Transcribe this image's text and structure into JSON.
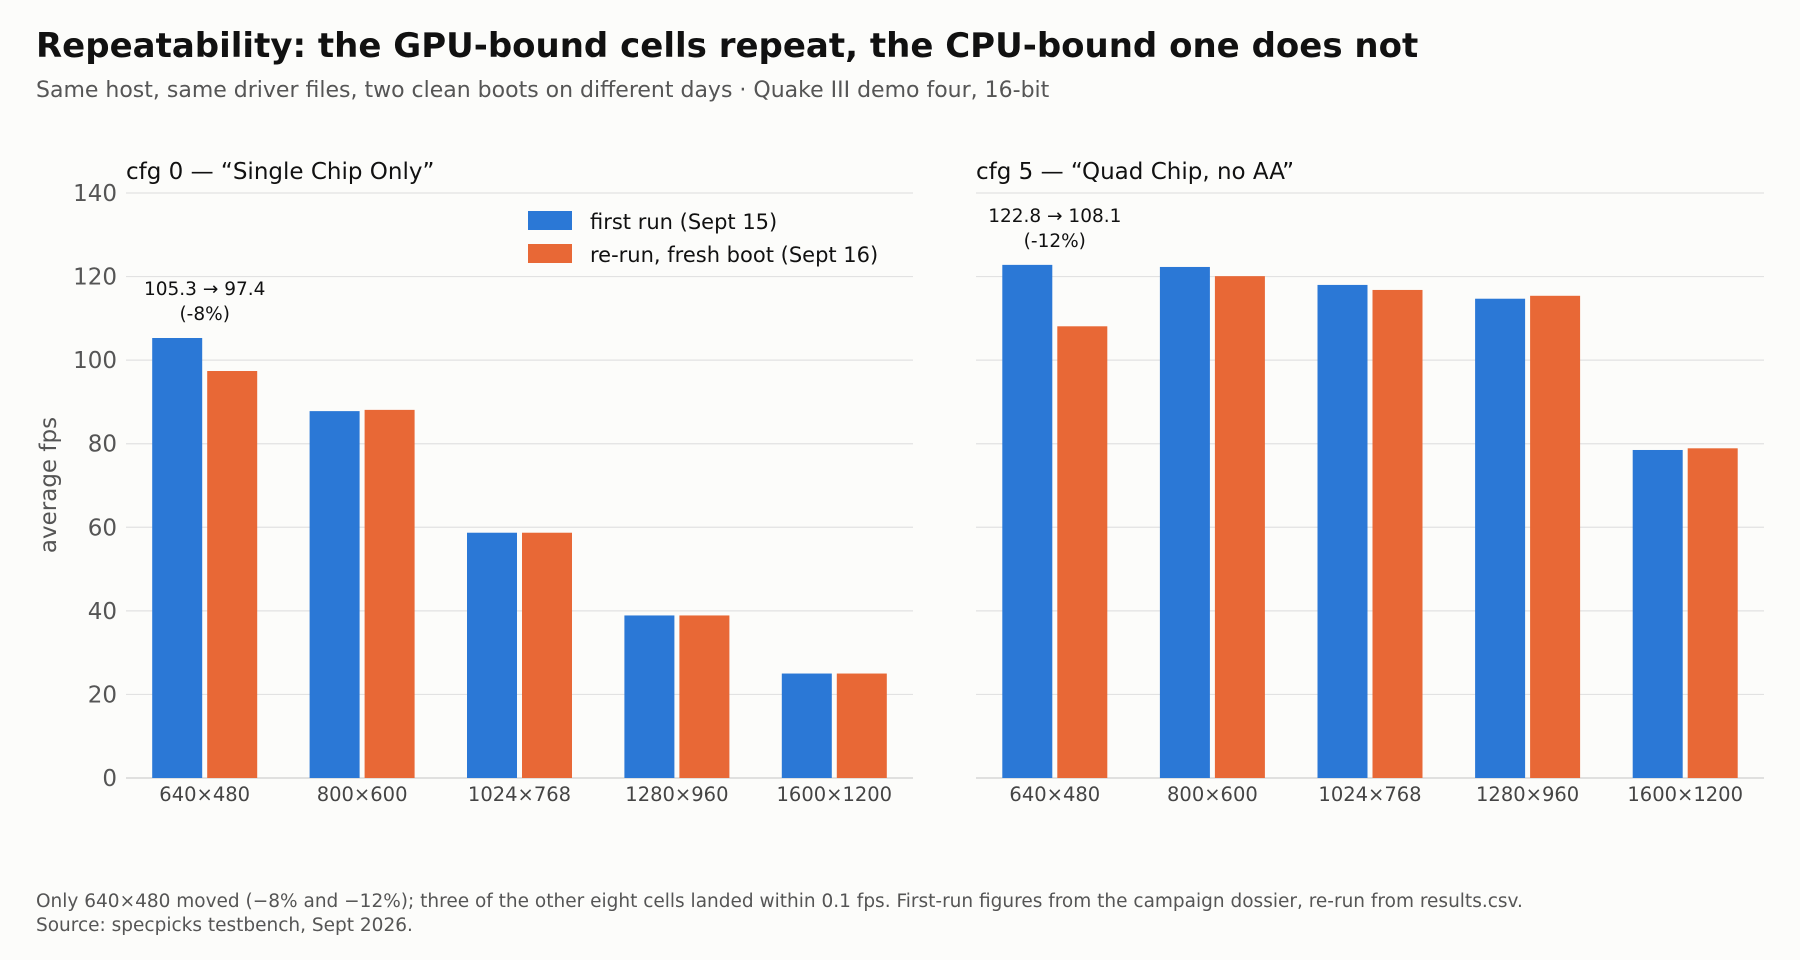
{
  "header": {
    "title": "Repeatability: the GPU-bound cells repeat, the CPU-bound one does not",
    "subtitle": "Same host, same driver files, two clean boots on different days · Quake III demo four, 16-bit"
  },
  "footnote": {
    "line1": "Only 640×480 moved (−8% and −12%); three of the other eight cells landed within 0.1 fps. First-run figures from the campaign dossier, re-run from results.csv.",
    "line2": "Source: specpicks testbench, Sept 2026."
  },
  "chart_data": [
    {
      "type": "bar",
      "title": "cfg 0 — “Single Chip Only”",
      "ylabel": "average fps",
      "ylim": [
        0,
        140
      ],
      "yticks": [
        0,
        20,
        40,
        60,
        80,
        100,
        120,
        140
      ],
      "grid": true,
      "categories": [
        "640×480",
        "800×600",
        "1024×768",
        "1280×960",
        "1600×1200"
      ],
      "series": [
        {
          "name": "first run (Sept 15)",
          "color": "#2b78d6",
          "values": [
            105.3,
            87.8,
            58.7,
            38.9,
            25.0
          ]
        },
        {
          "name": "re-run, fresh boot (Sept 16)",
          "color": "#e86836",
          "values": [
            97.4,
            88.1,
            58.7,
            38.9,
            25.0
          ]
        }
      ],
      "legend_position": "top-right",
      "annotations": [
        {
          "category": "640×480",
          "line1": "105.3 → 97.4",
          "line2": "(-8%)"
        }
      ]
    },
    {
      "type": "bar",
      "title": "cfg 5 — “Quad Chip, no AA”",
      "ylim": [
        0,
        140
      ],
      "yticks": [
        0,
        20,
        40,
        60,
        80,
        100,
        120,
        140
      ],
      "grid": true,
      "categories": [
        "640×480",
        "800×600",
        "1024×768",
        "1280×960",
        "1600×1200"
      ],
      "series": [
        {
          "name": "first run (Sept 15)",
          "color": "#2b78d6",
          "values": [
            122.8,
            122.3,
            118.0,
            114.7,
            78.5
          ]
        },
        {
          "name": "re-run, fresh boot (Sept 16)",
          "color": "#e86836",
          "values": [
            108.1,
            120.1,
            116.8,
            115.4,
            78.9
          ]
        }
      ],
      "annotations": [
        {
          "category": "640×480",
          "line1": "122.8 → 108.1",
          "line2": "(-12%)"
        }
      ]
    }
  ]
}
